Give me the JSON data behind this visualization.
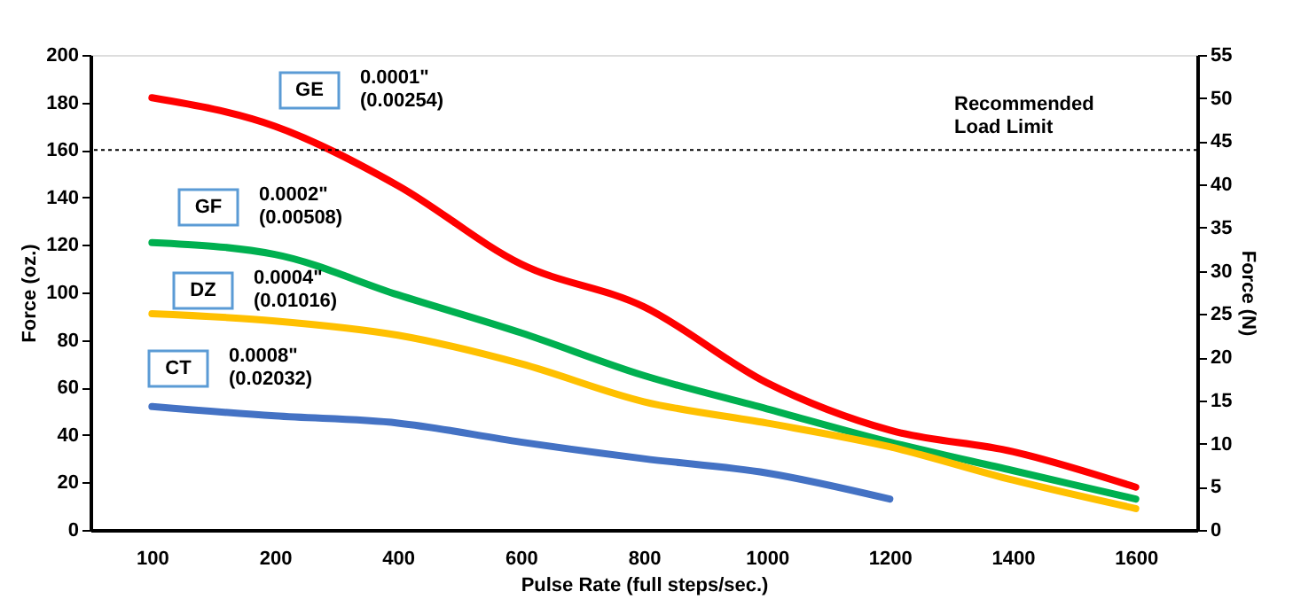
{
  "chart_data": {
    "type": "line",
    "xlabel": "Pulse Rate (full steps/sec.)",
    "ylabel": "Force (oz.)",
    "y2label": "Force (N)",
    "categories": [
      "100",
      "200",
      "400",
      "600",
      "800",
      "1000",
      "1200",
      "1400",
      "1600"
    ],
    "series": [
      {
        "name": "GE",
        "color": "#ff0000",
        "values": [
          182,
          170,
          145,
          112,
          94,
          62,
          42,
          33,
          18
        ]
      },
      {
        "name": "GF",
        "color": "#00b050",
        "values": [
          121,
          116,
          99,
          83,
          65,
          51,
          37,
          25,
          13
        ]
      },
      {
        "name": "DZ",
        "color": "#ffc000",
        "values": [
          91,
          88,
          82,
          70,
          54,
          45,
          35,
          21,
          9
        ]
      },
      {
        "name": "CT",
        "color": "#4472c4",
        "values": [
          52,
          48,
          45,
          37,
          30,
          24,
          13,
          null,
          null
        ]
      }
    ],
    "ylim": [
      0,
      200
    ],
    "yticks": [
      0,
      20,
      40,
      60,
      80,
      100,
      120,
      140,
      160,
      180,
      200
    ],
    "y2lim": [
      0,
      55
    ],
    "y2ticks": [
      0,
      5,
      10,
      15,
      20,
      25,
      30,
      35,
      40,
      45,
      50,
      55
    ],
    "ref_lines": [
      {
        "axis": "y",
        "value": 160,
        "label": "Recommended\nLoad Limit",
        "color": "#000000",
        "line_style": "dotted"
      }
    ],
    "annotations": [
      "0.0001\"\n(0.00254)",
      "0.0002\"\n(0.00508)",
      "0.0004\"\n(0.01016)",
      "0.0008\"\n(0.02032)"
    ],
    "grid": false,
    "line_style": "solid",
    "marker": "none"
  }
}
